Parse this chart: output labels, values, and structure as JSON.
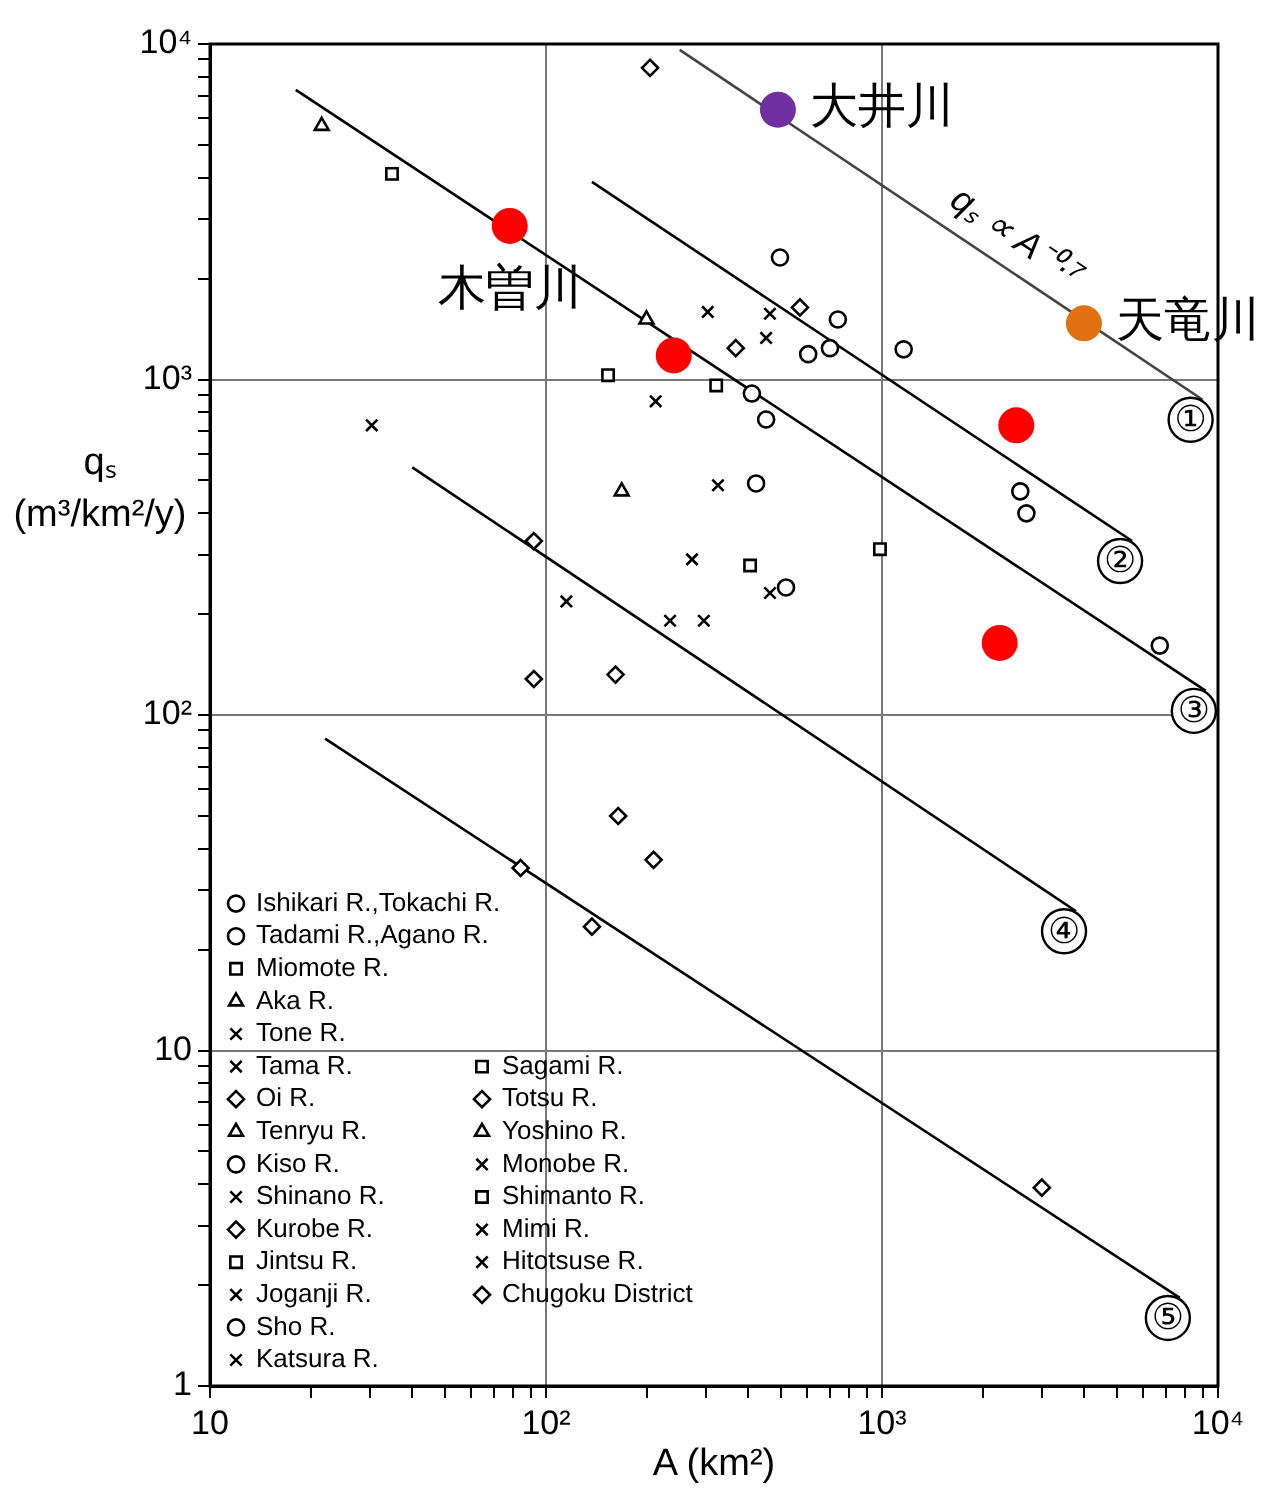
{
  "chart_data": {
    "type": "scatter",
    "xlabel": "A (km²)",
    "ylabel": "qₛ (m³/km²/y)",
    "log": "xy",
    "grid": true,
    "legend": "bottom left",
    "xlim": [
      10,
      10000
    ],
    "ylim": [
      1,
      10000
    ],
    "xticks": [
      10,
      {
        "value": 20,
        "label": null
      },
      {
        "value": 30,
        "label": null
      },
      {
        "value": 40,
        "label": null
      },
      {
        "value": 50,
        "label": null
      },
      {
        "value": 60,
        "label": null
      },
      {
        "value": 70,
        "label": null
      },
      {
        "value": 80,
        "label": null
      },
      {
        "value": 90,
        "label": null
      },
      {
        "value": 100,
        "label": "10²"
      },
      {
        "value": 200,
        "label": null
      },
      {
        "value": 300,
        "label": null
      },
      {
        "value": 400,
        "label": null
      },
      {
        "value": 500,
        "label": null
      },
      {
        "value": 600,
        "label": null
      },
      {
        "value": 700,
        "label": null
      },
      {
        "value": 800,
        "label": null
      },
      {
        "value": 900,
        "label": null
      },
      {
        "value": 1000,
        "label": "10³"
      },
      {
        "value": 2000,
        "label": null
      },
      {
        "value": 3000,
        "label": null
      },
      {
        "value": 4000,
        "label": null
      },
      {
        "value": 5000,
        "label": null
      },
      {
        "value": 6000,
        "label": null
      },
      {
        "value": 7000,
        "label": null
      },
      {
        "value": 8000,
        "label": null
      },
      {
        "value": 9000,
        "label": null
      },
      {
        "value": 10000,
        "label": "10⁴"
      }
    ],
    "yticks": [
      1,
      {
        "value": 2,
        "label": null
      },
      {
        "value": 3,
        "label": null
      },
      {
        "value": 4,
        "label": null
      },
      {
        "value": 5,
        "label": null
      },
      {
        "value": 6,
        "label": null
      },
      {
        "value": 7,
        "label": null
      },
      {
        "value": 8,
        "label": null
      },
      {
        "value": 9,
        "label": null
      },
      10,
      {
        "value": 20,
        "label": null
      },
      {
        "value": 30,
        "label": null
      },
      {
        "value": 40,
        "label": null
      },
      {
        "value": 50,
        "label": null
      },
      {
        "value": 60,
        "label": null
      },
      {
        "value": 70,
        "label": null
      },
      {
        "value": 80,
        "label": null
      },
      {
        "value": 90,
        "label": null
      },
      {
        "value": 100,
        "label": "10²"
      },
      {
        "value": 200,
        "label": null
      },
      {
        "value": 300,
        "label": null
      },
      {
        "value": 400,
        "label": null
      },
      {
        "value": 500,
        "label": null
      },
      {
        "value": 600,
        "label": null
      },
      {
        "value": 700,
        "label": null
      },
      {
        "value": 800,
        "label": null
      },
      {
        "value": 900,
        "label": null
      },
      {
        "value": 1000,
        "label": "10³"
      },
      {
        "value": 2000,
        "label": null
      },
      {
        "value": 3000,
        "label": null
      },
      {
        "value": 4000,
        "label": null
      },
      {
        "value": 5000,
        "label": null
      },
      {
        "value": 6000,
        "label": null
      },
      {
        "value": 7000,
        "label": null
      },
      {
        "value": 8000,
        "label": null
      },
      {
        "value": 9000,
        "label": null
      },
      {
        "value": 10000,
        "label": "10⁴"
      }
    ],
    "series": [
      {
        "name": "Ishikari R.,Tokachi R.",
        "color": "#000000",
        "marker": "circle",
        "x": [
          410,
          452,
          518
        ],
        "values": [
          908,
          760,
          240
        ]
      },
      {
        "name": "Tadami R.,Agano R.",
        "color": "#000000",
        "marker": "circle",
        "x": [
          497,
          739,
          2580,
          2690,
          6710
        ],
        "values": [
          2310,
          1510,
          464,
          399,
          161
        ]
      },
      {
        "name": "Miomote R.",
        "color": "#000000",
        "marker": "square",
        "x": [
          34.8,
          321
        ],
        "values": [
          4100,
          960
        ]
      },
      {
        "name": "Aka R.",
        "color": "#000000",
        "marker": "triangle",
        "x": [
          199,
          168
        ],
        "values": [
          1510,
          464
        ]
      },
      {
        "name": "Tone R.",
        "color": "#000000",
        "marker": "cross",
        "x": [
          30.3,
          325,
          115
        ],
        "values": [
          730,
          484,
          218
        ]
      },
      {
        "name": "Tama R.",
        "color": "#000000",
        "marker": "cross",
        "x": [
          272
        ],
        "values": [
          291
        ]
      },
      {
        "name": "Oi R.",
        "color": "#000000",
        "marker": "diamond",
        "x": [
          92,
          92,
          161
        ],
        "values": [
          330,
          128,
          132
        ]
      },
      {
        "name": "Tenryu R.",
        "color": "#000000",
        "marker": "triangle",
        "x": [
          21.5
        ],
        "values": [
          5700
        ]
      },
      {
        "name": "Kiso R.",
        "color": "#000000",
        "marker": "circle"
      },
      {
        "name": "Shinano R.",
        "color": "#000000",
        "marker": "cross",
        "x": [
          212
        ],
        "values": [
          861
        ]
      },
      {
        "name": "Kurobe R.",
        "color": "#000000",
        "marker": "diamond",
        "x": [
          204
        ],
        "values": [
          8490
        ]
      },
      {
        "name": "Jintsu R.",
        "color": "#000000",
        "marker": "square",
        "x": [
          153
        ],
        "values": [
          1030
        ]
      },
      {
        "name": "Joganji R.",
        "color": "#000000",
        "marker": "cross",
        "x": [
          234
        ],
        "values": [
          191
        ]
      },
      {
        "name": "Sho R.",
        "color": "#000000",
        "marker": "circle",
        "x": [
          422,
          603,
          700,
          1160
        ],
        "values": [
          490,
          1190,
          1240,
          1230
        ]
      },
      {
        "name": "Katsura R.",
        "color": "#000000",
        "marker": "cross",
        "x": [
          295
        ],
        "values": [
          191
        ]
      },
      {
        "name": "Sagami R.",
        "color": "#000000",
        "marker": "square",
        "x": [
          986
        ],
        "values": [
          312
        ]
      },
      {
        "name": "Totsu R.",
        "color": "#000000",
        "marker": "diamond",
        "x": [
          570,
          367
        ],
        "values": [
          1640,
          1240
        ]
      },
      {
        "name": "Yoshino R.",
        "color": "#000000",
        "marker": "triangle"
      },
      {
        "name": "Monobe R.",
        "color": "#000000",
        "marker": "cross",
        "x": [
          464
        ],
        "values": [
          231
        ]
      },
      {
        "name": "Shimanto R.",
        "color": "#000000",
        "marker": "square",
        "x": [
          405
        ],
        "values": [
          279
        ]
      },
      {
        "name": "Mimi R.",
        "color": "#000000",
        "marker": "cross",
        "x": [
          303,
          452
        ],
        "values": [
          1590,
          1330
        ]
      },
      {
        "name": "Hitotsuse R.",
        "color": "#000000",
        "marker": "cross",
        "x": [
          464
        ],
        "values": [
          1570
        ]
      },
      {
        "name": "Chugoku District",
        "color": "#000000",
        "marker": "diamond",
        "x": [
          164,
          209,
          84,
          137,
          2990
        ],
        "values": [
          50,
          37,
          35,
          23.4,
          3.9
        ]
      },
      {
        "type": "line",
        "name": "①",
        "color": "#444444",
        "x": [
          250,
          9000
        ],
        "values": [
          9600,
          870
        ]
      },
      {
        "type": "line",
        "name": "②",
        "color": "#000000",
        "x": [
          137,
          5550
        ],
        "values": [
          3880,
          330
        ]
      },
      {
        "type": "line",
        "name": "③",
        "color": "#000000",
        "x": [
          18,
          9200
        ],
        "values": [
          7300,
          118
        ]
      },
      {
        "type": "line",
        "name": "④",
        "color": "#000000",
        "x": [
          40,
          3780
        ],
        "values": [
          547,
          26
        ]
      },
      {
        "type": "line",
        "name": "⑤",
        "color": "#000000",
        "x": [
          22,
          7700
        ],
        "values": [
          85,
          1.83
        ]
      },
      {
        "color": "#7030a0",
        "marker": "circle",
        "x": [
          490
        ],
        "values": [
          6370
        ]
      },
      {
        "color": "#e07010",
        "marker": "circle",
        "x": [
          3990
        ],
        "values": [
          1470
        ]
      },
      {
        "color": "#ff0000",
        "marker": "circle",
        "x": [
          78,
          240,
          2510,
          2240
        ],
        "values": [
          2870,
          1180,
          730,
          164
        ]
      }
    ],
    "annotations": [
      {
        "text": "大井川",
        "x": 490,
        "y": 6370
      },
      {
        "text": "木曽川",
        "x": 78,
        "y": 2870
      },
      {
        "text": "天竜川",
        "x": 3990,
        "y": 1470
      },
      {
        "text": "qₛ ∝ A⁻⁰·⁷",
        "x": 2240,
        "y": 2220
      }
    ]
  }
}
